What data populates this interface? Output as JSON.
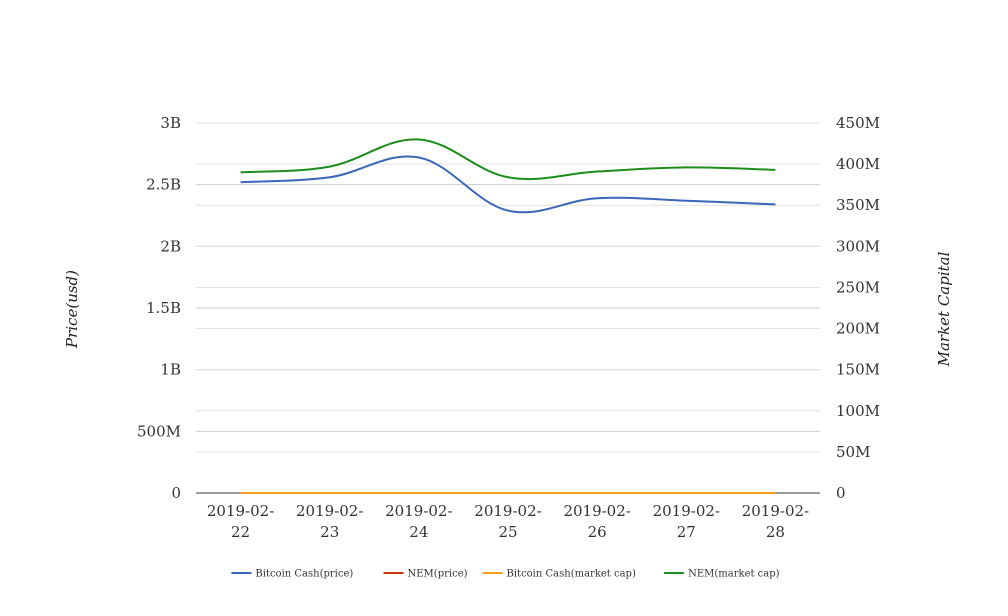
{
  "chart_data": {
    "type": "line",
    "categories": [
      "2019-02-22",
      "2019-02-23",
      "2019-02-24",
      "2019-02-25",
      "2019-02-26",
      "2019-02-27",
      "2019-02-28"
    ],
    "category_lines": [
      [
        "2019-02-",
        "22"
      ],
      [
        "2019-02-",
        "23"
      ],
      [
        "2019-02-",
        "24"
      ],
      [
        "2019-02-",
        "25"
      ],
      [
        "2019-02-",
        "26"
      ],
      [
        "2019-02-",
        "27"
      ],
      [
        "2019-02-",
        "28"
      ]
    ],
    "ylabel": "Price(usd)",
    "y2label": "Market Capital",
    "ylim": [
      0,
      3000000000
    ],
    "y2lim": [
      0,
      450000000
    ],
    "y_ticks": [
      "0",
      "500M",
      "1B",
      "1.5B",
      "2B",
      "2.5B",
      "3B"
    ],
    "y2_ticks": [
      "0",
      "50M",
      "100M",
      "150M",
      "200M",
      "250M",
      "300M",
      "350M",
      "400M",
      "450M"
    ],
    "grid": true,
    "legend_position": "bottom",
    "series": [
      {
        "name": "Bitcoin Cash(price)",
        "axis": "left",
        "color": "#3b67b8",
        "values": [
          2520000000,
          2560000000,
          2720000000,
          2290000000,
          2390000000,
          2370000000,
          2340000000
        ]
      },
      {
        "name": "NEM(price)",
        "axis": "left",
        "color": "#cc3311",
        "values": [
          0.047,
          0.046,
          0.05,
          0.046,
          0.047,
          0.046,
          0.046
        ]
      },
      {
        "name": "Bitcoin Cash(market cap)",
        "axis": "right",
        "color": "#f59f1a",
        "values": [
          130,
          132,
          140,
          121,
          126,
          125,
          124
        ]
      },
      {
        "name": "NEM(market cap)",
        "axis": "right",
        "color": "#1c8c1c",
        "values": [
          390000000,
          397000000,
          430000000,
          384000000,
          391000000,
          396000000,
          393000000
        ]
      }
    ]
  }
}
